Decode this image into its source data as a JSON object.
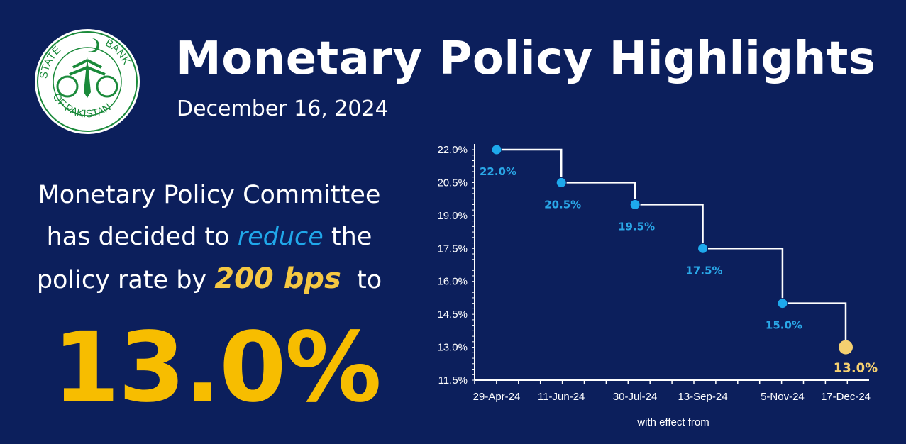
{
  "logo": {
    "text_top_left": "STATE",
    "text_top_right": "BANK",
    "text_bottom": "OF PAKISTAN",
    "colors": {
      "ring": "#1a8a3a",
      "bg": "#ffffff"
    }
  },
  "header": {
    "title": "Monetary Policy Highlights",
    "date": "December 16, 2024"
  },
  "message": {
    "line1": "Monetary Policy Committee",
    "line2_a": "has decided to ",
    "line2_em": "reduce",
    "line2_b": " the",
    "line3_a": "policy rate by ",
    "line3_em": "200 bps",
    "line3_b": "  to",
    "rate": "13.0%"
  },
  "colors": {
    "background": "#0c1f5c",
    "point": "#1ea9ec",
    "last_point": "#f5d070",
    "big_rate": "#f7bd00",
    "line": "#ffffff"
  },
  "chart_data": {
    "type": "line",
    "step": true,
    "xlabel": "with effect  from",
    "ylabel": "",
    "ylim": [
      11.5,
      22.0
    ],
    "yticks": [
      "22.0%",
      "20.5%",
      "19.0%",
      "17.5%",
      "16.0%",
      "14.5%",
      "13.0%",
      "11.5%"
    ],
    "xticks": [
      "29-Apr-24",
      "11-Jun-24",
      "30-Jul-24",
      "13-Sep-24",
      "5-Nov-24",
      "17-Dec-24"
    ],
    "x": [
      "2024-04-29",
      "2024-06-11",
      "2024-07-30",
      "2024-09-13",
      "2024-11-05",
      "2024-12-17"
    ],
    "values": [
      22.0,
      20.5,
      19.5,
      17.5,
      15.0,
      13.0
    ],
    "labels": [
      "22.0%",
      "20.5%",
      "19.5%",
      "17.5%",
      "15.0%",
      "13.0%"
    ],
    "grid": false
  }
}
